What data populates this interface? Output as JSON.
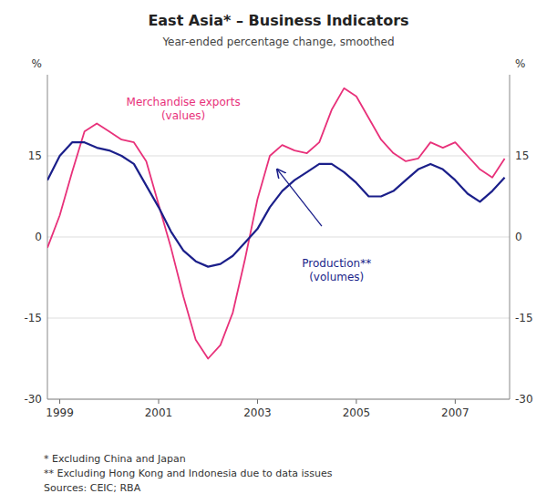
{
  "chart_data": {
    "type": "line",
    "title": "East Asia* – Business Indicators",
    "subtitle": "Year-ended percentage change, smoothed",
    "ylabel": "%",
    "y2label": "%",
    "x": [
      1998.75,
      1999.0,
      1999.25,
      1999.5,
      1999.75,
      2000.0,
      2000.25,
      2000.5,
      2000.75,
      2001.0,
      2001.25,
      2001.5,
      2001.75,
      2002.0,
      2002.25,
      2002.5,
      2002.75,
      2003.0,
      2003.25,
      2003.5,
      2003.75,
      2004.0,
      2004.25,
      2004.5,
      2004.75,
      2005.0,
      2005.25,
      2005.5,
      2005.75,
      2006.0,
      2006.25,
      2006.5,
      2006.75,
      2007.0,
      2007.25,
      2007.5,
      2007.75,
      2008.0
    ],
    "series": [
      {
        "color": "#E8317A",
        "values": [
          -2.0,
          4.0,
          12.0,
          19.5,
          21.0,
          19.5,
          18.0,
          17.5,
          14.0,
          6.0,
          -2.0,
          -11.0,
          -19.0,
          -22.5,
          -20.0,
          -14.0,
          -4.0,
          7.0,
          15.0,
          17.0,
          16.0,
          15.5,
          17.5,
          23.5,
          27.5,
          26.0,
          22.0,
          18.0,
          15.5,
          14.0,
          14.5,
          17.5,
          16.5,
          17.5,
          15.0,
          12.5,
          11.0,
          14.5
        ]
      },
      {
        "color": "#1B1F8A",
        "values": [
          10.5,
          15.0,
          17.5,
          17.5,
          16.5,
          16.0,
          15.0,
          13.5,
          9.5,
          5.5,
          1.0,
          -2.5,
          -4.5,
          -5.5,
          -5.0,
          -3.5,
          -1.0,
          1.5,
          5.5,
          8.5,
          10.5,
          12.0,
          13.5,
          13.5,
          12.0,
          10.0,
          7.5,
          7.5,
          8.5,
          10.5,
          12.5,
          13.5,
          12.5,
          10.5,
          8.0,
          6.5,
          8.5,
          11.0
        ]
      }
    ],
    "xlim": [
      1998.75,
      2008.1
    ],
    "xticks": [
      1999,
      2001,
      2003,
      2005,
      2007
    ],
    "ylim": [
      -30,
      30
    ],
    "yticks": [
      -30,
      -15,
      0,
      15
    ],
    "y2lim": [
      -30,
      30
    ],
    "y2ticks": [
      -30,
      -15,
      0,
      15
    ],
    "grid": true,
    "annotations": [
      {
        "text": "Merchandise exports\n(values)",
        "x": 2001.5,
        "y": 21.0,
        "color": "#E8317A"
      },
      {
        "text": "Production**\n(volumes)",
        "x": 2004.6,
        "y": -3.5,
        "color": "#1B1F8A",
        "arrow_from": [
          2004.3,
          2.0
        ],
        "arrow_to": [
          2003.4,
          12.5
        ]
      }
    ],
    "footnotes": [
      "*  Excluding China and Japan",
      "** Excluding Hong Kong and Indonesia due to data issues",
      "Sources: CEIC; RBA"
    ]
  }
}
